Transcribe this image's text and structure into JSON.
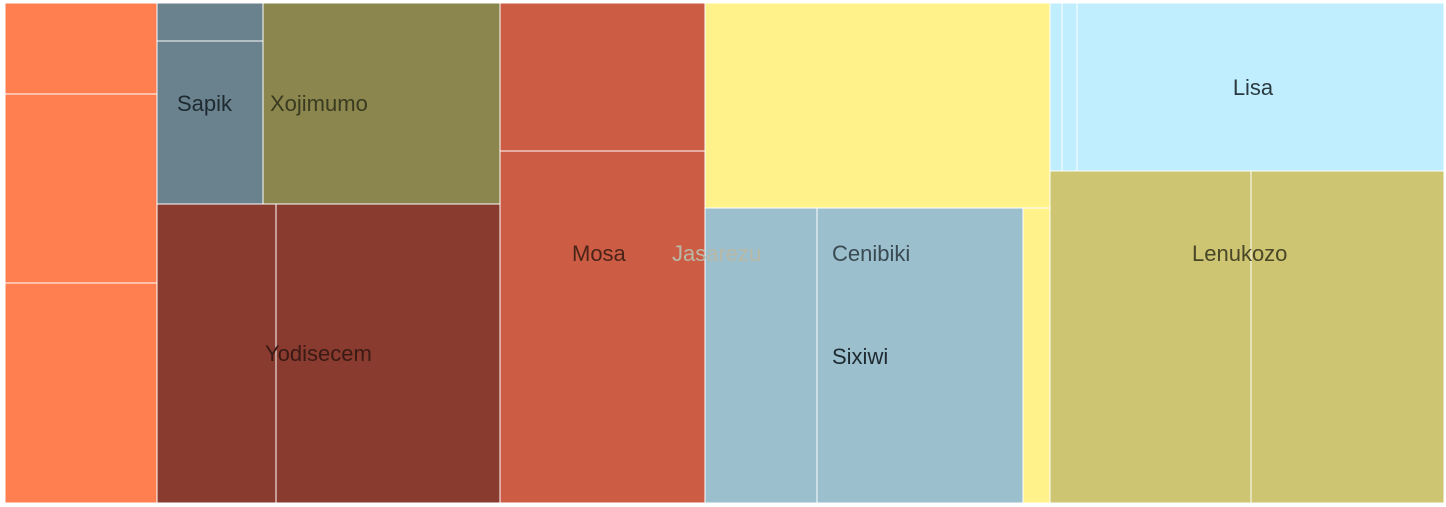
{
  "chart_data": {
    "type": "treemap",
    "groups": [
      {
        "name": "",
        "color": "#ff7f50",
        "label_color": "#2b2b2b",
        "children": [
          {
            "name": "",
            "value": 14002
          },
          {
            "name": "",
            "value": 29262
          },
          {
            "name": "",
            "value": 33821
          }
        ]
      },
      {
        "name": "Sapik",
        "color": "#69828e",
        "label_color": "#1e2a30",
        "children": [
          {
            "name": "",
            "value": 3996
          },
          {
            "name": "",
            "value": 17264
          }
        ]
      },
      {
        "name": "Xojimumo",
        "color": "#8a864d",
        "label_color": "#3a3a20",
        "children": [
          {
            "name": "",
            "value": 48043
          }
        ]
      },
      {
        "name": "Yodisecem",
        "color": "#8a3b2f",
        "label_color": "#3a1a14",
        "children": [
          {
            "name": "",
            "value": 35337
          },
          {
            "name": "",
            "value": 67209
          }
        ]
      },
      {
        "name": "Mosa",
        "color": "#cd5c45",
        "label_color": "#4a2418",
        "children": [
          {
            "name": "",
            "value": 30343
          },
          {
            "name": "",
            "value": 72287
          }
        ]
      },
      {
        "name": "Jasarezu",
        "color": "#fff28a",
        "label_color": "#b9b9a6",
        "children": [
          {
            "name": "",
            "value": 70862
          },
          {
            "name": "",
            "value": 8186
          }
        ]
      },
      {
        "name": "Cenibiki",
        "color": "#9bbfcd",
        "label_color": "#3a4a52",
        "children": [
          {
            "name": "",
            "value": 33188
          }
        ]
      },
      {
        "name": "Sixiwi",
        "color": "#9bbfcd",
        "label_color": "#1e2a30",
        "children": [
          {
            "name": "",
            "value": 60591
          }
        ]
      },
      {
        "name": "Lisa",
        "color": "#c0eeff",
        "label_color": "#2a3a40",
        "children": [
          {
            "name": "",
            "value": 1891
          },
          {
            "name": "",
            "value": 2554
          },
          {
            "name": "",
            "value": 61301
          }
        ]
      },
      {
        "name": "Lenukozo",
        "color": "#cdc572",
        "label_color": "#4a4628",
        "children": [
          {
            "name": "",
            "value": 66501
          },
          {
            "name": "",
            "value": 64187
          }
        ]
      }
    ]
  }
}
